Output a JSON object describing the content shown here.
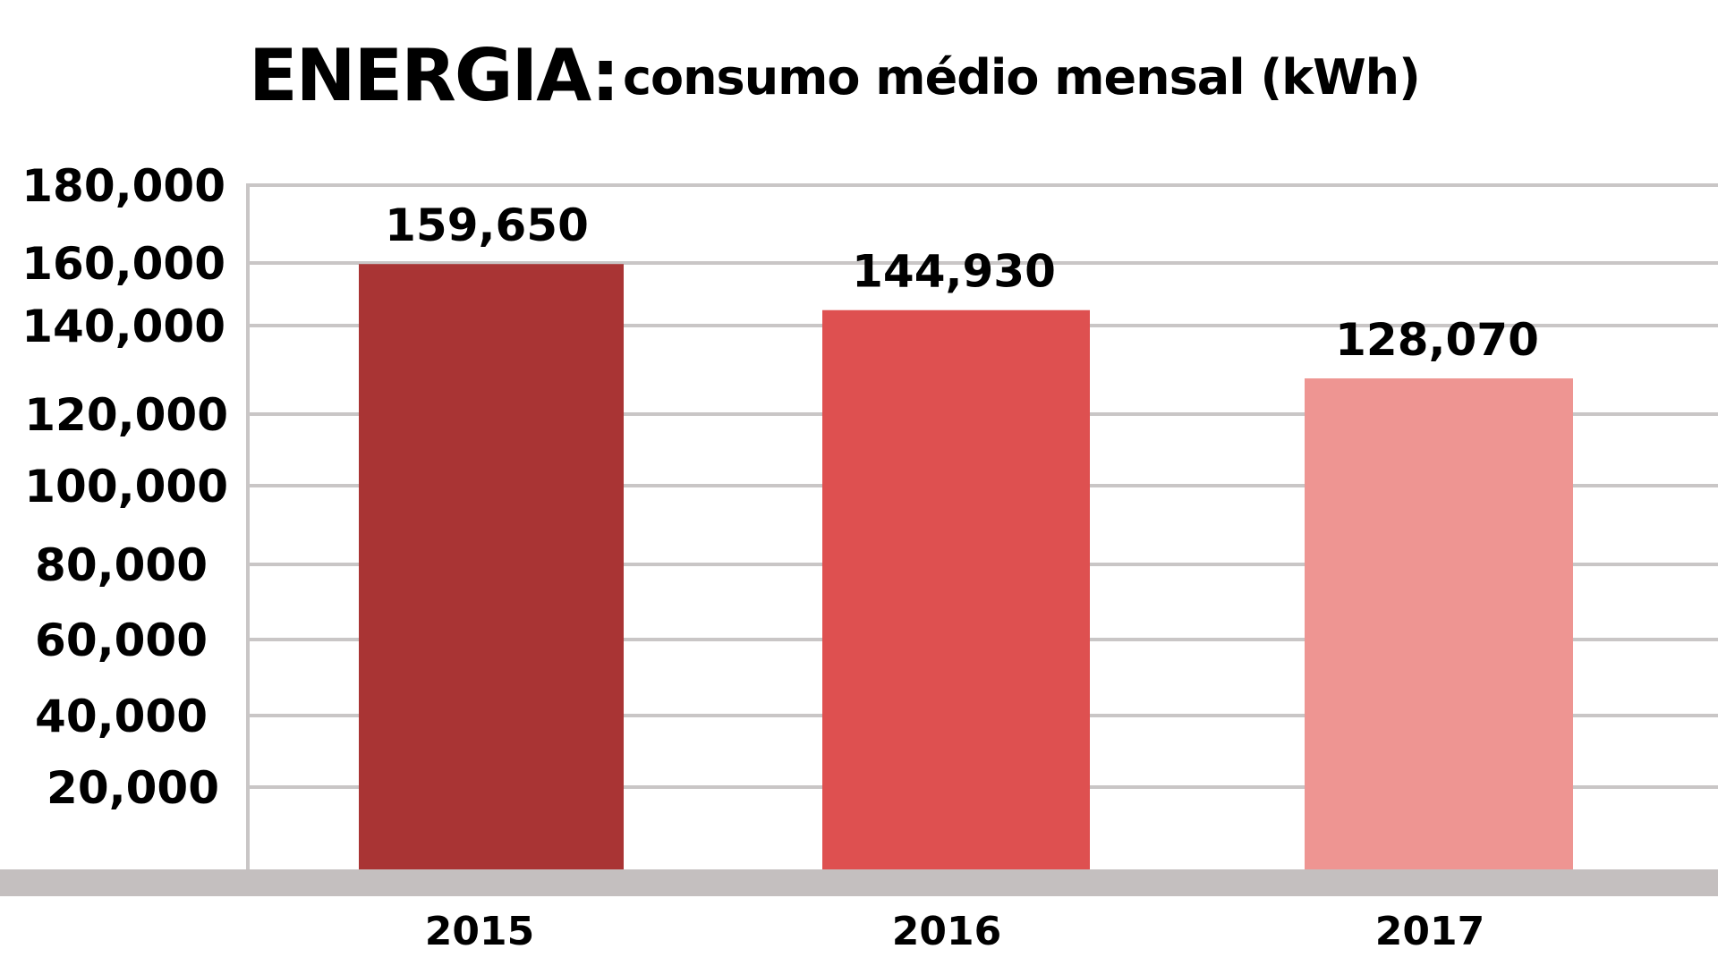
{
  "chart_data": {
    "type": "bar",
    "title": "ENERGIA:",
    "subtitle": "consumo médio mensal  (kWh)",
    "categories": [
      "2015",
      "2016",
      "2017"
    ],
    "values": [
      159650,
      144930,
      128070
    ],
    "value_labels": [
      "159,650",
      "144,930",
      "128,070"
    ],
    "bar_colors": [
      "#a93434",
      "#de5050",
      "#ee9592"
    ],
    "ylim": [
      0,
      180000
    ],
    "y_ticks": [
      20000,
      40000,
      60000,
      80000,
      100000,
      120000,
      140000,
      160000,
      180000
    ],
    "y_tick_labels": [
      "20,000",
      "40,000",
      "60,000",
      "80,000",
      "100,000",
      "120,000",
      "140,000",
      "160,000",
      "180,000"
    ],
    "grid": true,
    "legend": "none",
    "gridline_color": "#c9c6c6",
    "axis_band_color": "#c4bfbf"
  }
}
